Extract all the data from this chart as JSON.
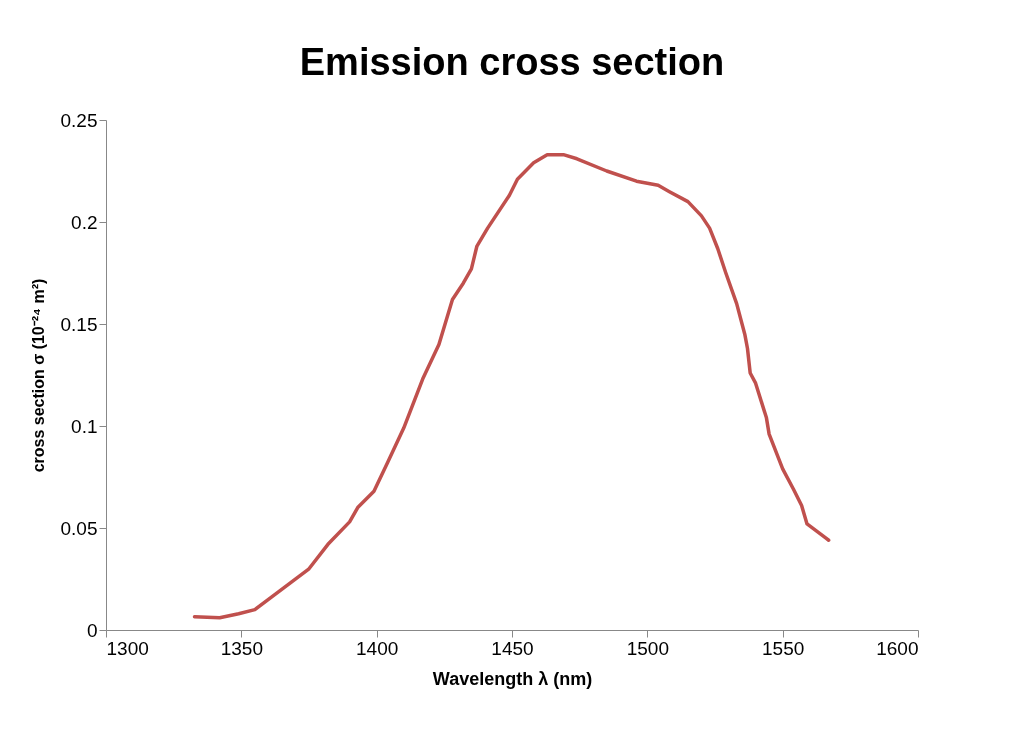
{
  "chart_data": {
    "type": "line",
    "title": "Emission cross section",
    "xlabel": "Wavelength λ (nm)",
    "ylabel": "cross section σ (10⁻²⁴ m²)",
    "x": [
      1332.7,
      1342,
      1349,
      1355,
      1361,
      1368,
      1375,
      1382,
      1390,
      1393,
      1399,
      1404,
      1410,
      1417,
      1423,
      1428,
      1432,
      1435,
      1437,
      1441,
      1449,
      1452,
      1458,
      1463,
      1469,
      1474,
      1485,
      1496,
      1504,
      1508,
      1515,
      1520,
      1523,
      1526,
      1529,
      1533,
      1536,
      1537,
      1538,
      1540,
      1544,
      1545,
      1550,
      1554,
      1557,
      1559,
      1566,
      1567
    ],
    "series": [
      {
        "color": "#c0504d",
        "values": [
          0.0065,
          0.006,
          0.008,
          0.01,
          0.016,
          0.023,
          0.03,
          0.042,
          0.053,
          0.06,
          0.068,
          0.082,
          0.099,
          0.123,
          0.14,
          0.162,
          0.17,
          0.177,
          0.188,
          0.197,
          0.213,
          0.221,
          0.229,
          0.233,
          0.233,
          0.231,
          0.225,
          0.22,
          0.218,
          0.215,
          0.21,
          0.203,
          0.197,
          0.187,
          0.175,
          0.16,
          0.145,
          0.138,
          0.126,
          0.121,
          0.104,
          0.096,
          0.079,
          0.069,
          0.061,
          0.052,
          0.045,
          0.044
        ]
      }
    ],
    "xlim": [
      1300,
      1600
    ],
    "xticks": [
      1300,
      1350,
      1400,
      1450,
      1500,
      1550,
      1600
    ],
    "ylim": [
      0,
      0.25
    ],
    "yticks": [
      0,
      0.05,
      0.1,
      0.15,
      0.2,
      0.25
    ],
    "grid": false,
    "legend": false,
    "marker": "none",
    "line_style": "solid"
  }
}
